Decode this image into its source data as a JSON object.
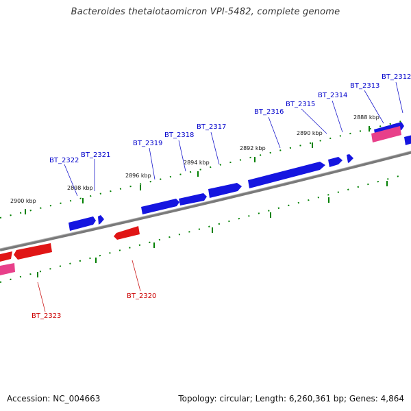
{
  "title": "Bacteroides thetaiotaomicron VPI-5482, complete genome",
  "footer": {
    "accession": "Accession: NC_004663",
    "info": "Topology: circular; Length: 6,260,361 bp; Genes: 4,864"
  },
  "ticks": [
    "2900 kbp",
    "2898 kbp",
    "2896 kbp",
    "2894 kbp",
    "2892 kbp",
    "2890 kbp",
    "2888 kbp"
  ],
  "genes_forward": [
    "BT_2322",
    "BT_2321",
    "BT_2319",
    "BT_2318",
    "BT_2317",
    "BT_2316",
    "BT_2315",
    "BT_2314",
    "BT_2313",
    "BT_2312"
  ],
  "genes_reverse": [
    "BT_2323",
    "BT_2320"
  ],
  "colors": {
    "forward_gene": "#1010e6",
    "reverse_gene": "#e61010",
    "rna_feature": "#e8408a",
    "tick": "#008000",
    "backbone": "#808080",
    "label_forward": "#0000cc",
    "label_reverse": "#cc0000"
  }
}
